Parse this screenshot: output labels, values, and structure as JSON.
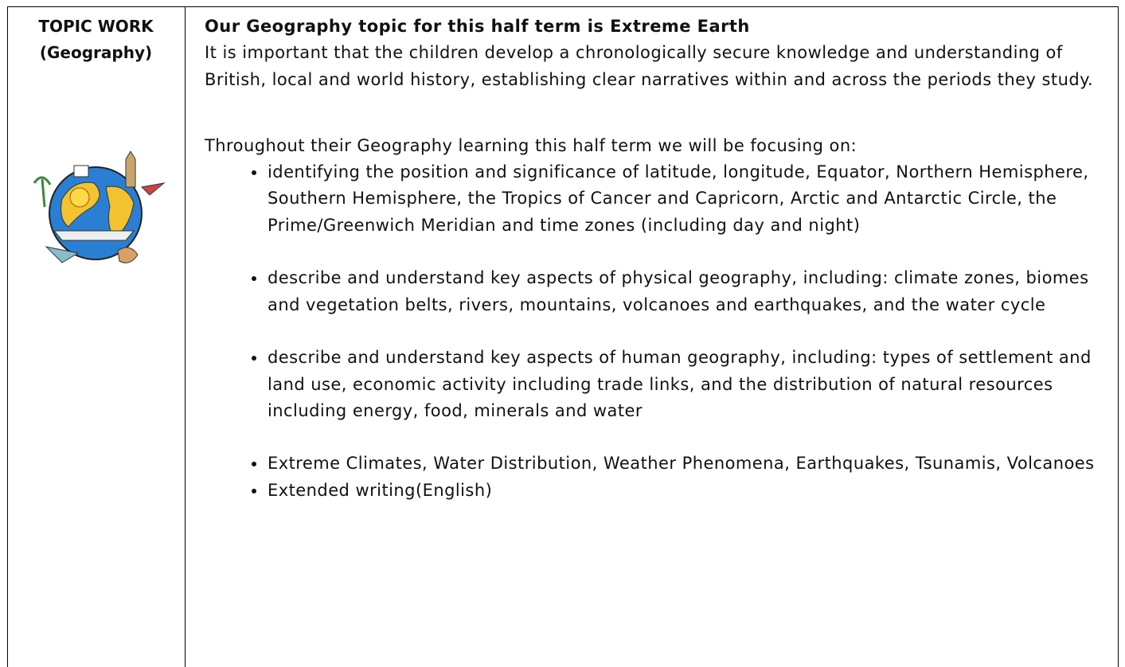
{
  "left_cell": {
    "title": "TOPIC WORK",
    "subtitle": "(Geography)"
  },
  "right_cell": {
    "heading": "Our Geography topic for this half term is Extreme Earth",
    "intro": "It is important that the children develop a chronologically secure knowledge and understanding of British, local and world history, establishing clear narratives within and across the periods they study.",
    "lead": "Throughout their Geography learning this half term we will be focusing on:",
    "bullets": [
      "identifying the position and significance of latitude, longitude, Equator, Northern Hemisphere, Southern Hemisphere, the Tropics of Cancer and Capricorn, Arctic and Antarctic Circle, the Prime/Greenwich Meridian and time zones (including day and night)",
      "describe and understand key aspects of physical geography, including: climate zones, biomes and vegetation belts, rivers, mountains, volcanoes and earthquakes, and the water cycle",
      "describe and understand key aspects of human geography, including: types of settlement and land use, economic activity including trade links, and the distribution of natural resources including energy, food, minerals and water",
      "Extreme Climates, Water Distribution, Weather Phenomena, Earthquakes, Tsunamis, Volcanoes",
      "Extended writing(English)"
    ]
  }
}
